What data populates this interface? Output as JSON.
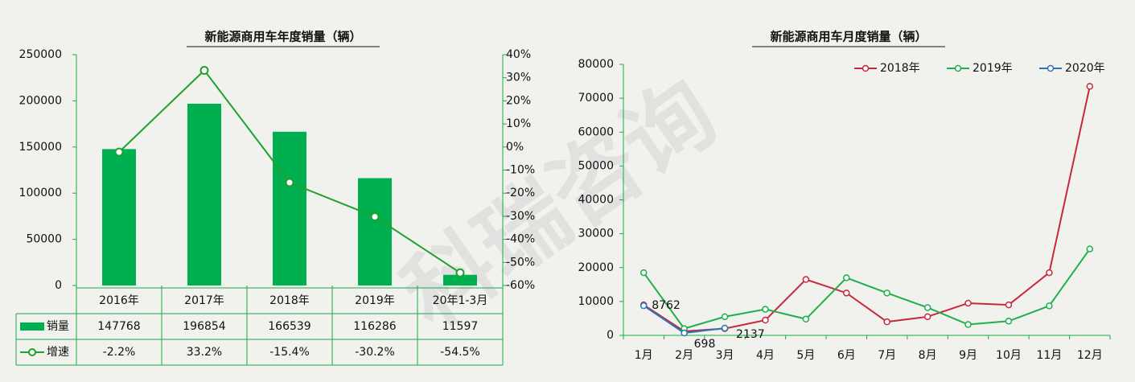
{
  "watermark": "科瑞咨询",
  "chart_data": [
    {
      "type": "bar",
      "title": "新能源商用车年度销量（辆）",
      "categories": [
        "2016年",
        "2017年",
        "2018年",
        "2019年",
        "20年1-3月"
      ],
      "series": [
        {
          "name": "销量",
          "color": "#00b050",
          "values": [
            147768,
            196854,
            166539,
            116286,
            11597
          ]
        },
        {
          "name": "增速",
          "type": "line",
          "axis": "y2",
          "color": "#1fa12c",
          "values": [
            -2.2,
            33.2,
            -15.4,
            -30.2,
            -54.5
          ],
          "value_labels": [
            "-2.2%",
            "33.2%",
            "-15.4%",
            "-30.2%",
            "-54.5%"
          ]
        }
      ],
      "ylim": [
        0,
        250000
      ],
      "yticks": [
        0,
        50000,
        100000,
        150000,
        200000,
        250000
      ],
      "y2lim": [
        -60,
        40
      ],
      "y2ticks": [
        {
          "value": -60,
          "label": "-60%"
        },
        {
          "value": -50,
          "label": "-50%"
        },
        {
          "value": -40,
          "label": "-40%"
        },
        {
          "value": -30,
          "label": "-30%"
        },
        {
          "value": -20,
          "label": "-20%"
        },
        {
          "value": -10,
          "label": "-10%"
        },
        {
          "value": 0,
          "label": "0%"
        },
        {
          "value": 10,
          "label": "10%"
        },
        {
          "value": 20,
          "label": "20%"
        },
        {
          "value": 30,
          "label": "30%"
        },
        {
          "value": 40,
          "label": "40%"
        }
      ]
    },
    {
      "type": "line",
      "title": "新能源商用车月度销量（辆）",
      "categories": [
        "1月",
        "2月",
        "3月",
        "4月",
        "5月",
        "6月",
        "7月",
        "8月",
        "9月",
        "10月",
        "11月",
        "12月"
      ],
      "series": [
        {
          "name": "2018年",
          "color": "#c8283c",
          "values": [
            9000,
            1200,
            2000,
            4500,
            16500,
            12500,
            4000,
            5500,
            9500,
            9000,
            18500,
            73500
          ]
        },
        {
          "name": "2019年",
          "color": "#1db04b",
          "values": [
            18500,
            2000,
            5500,
            7700,
            4800,
            17000,
            12500,
            8200,
            3200,
            4200,
            8700,
            25500
          ]
        },
        {
          "name": "2020年",
          "color": "#2e75b6",
          "values": [
            8762,
            698,
            2137,
            null,
            null,
            null,
            null,
            null,
            null,
            null,
            null,
            null
          ],
          "data_labels": true
        }
      ],
      "ylim": [
        0,
        80000
      ],
      "yticks": [
        0,
        10000,
        20000,
        30000,
        40000,
        50000,
        60000,
        70000,
        80000
      ],
      "legend": "top-right"
    }
  ]
}
